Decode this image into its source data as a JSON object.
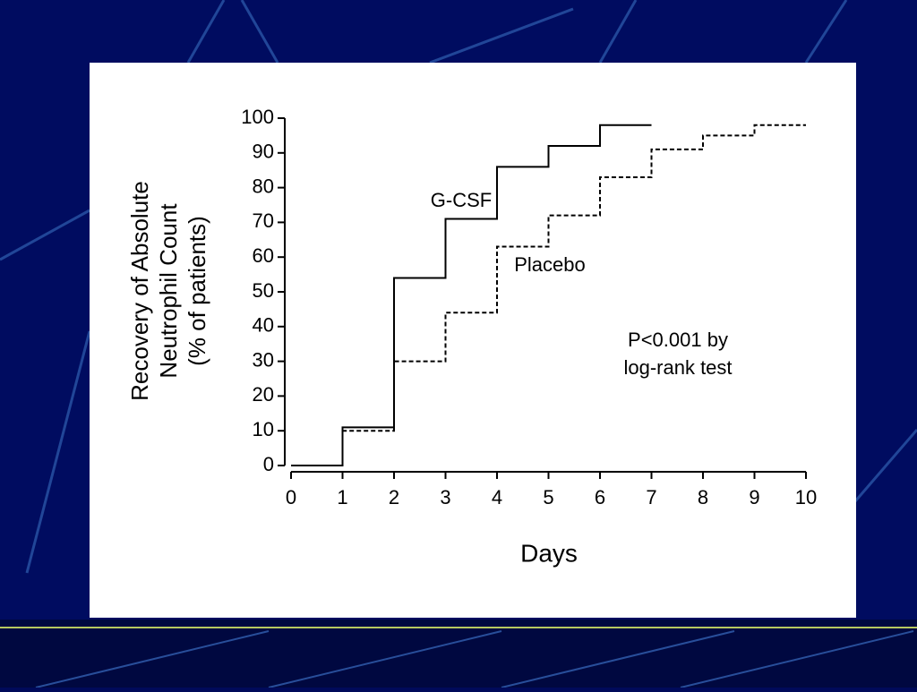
{
  "chart_data": {
    "type": "line",
    "step": "post",
    "y_label": [
      "Recovery of Absolute",
      "Neutrophil Count",
      "(% of patients)"
    ],
    "x_label": "Days",
    "annotations": [
      "P<0.001 by",
      "log-rank test"
    ],
    "xlim": [
      0,
      10
    ],
    "xticks": [
      0,
      1,
      2,
      3,
      4,
      5,
      6,
      7,
      8,
      9,
      10
    ],
    "ylim": [
      0,
      100
    ],
    "yticks": [
      0,
      10,
      20,
      30,
      40,
      50,
      60,
      70,
      80,
      90,
      100
    ],
    "series": [
      {
        "name": "G-CSF",
        "color": "#000000",
        "dash": false,
        "x": [
          0,
          1,
          2,
          3,
          4,
          5,
          6,
          7
        ],
        "values": [
          0,
          11,
          54,
          71,
          86,
          92,
          98,
          98
        ]
      },
      {
        "name": "Placebo",
        "color": "#000000",
        "dash": true,
        "x": [
          0,
          1,
          2,
          3,
          4,
          5,
          6,
          7,
          8,
          9,
          10
        ],
        "values": [
          0,
          10,
          30,
          44,
          63,
          72,
          83,
          91,
          95,
          98,
          98
        ]
      }
    ]
  }
}
